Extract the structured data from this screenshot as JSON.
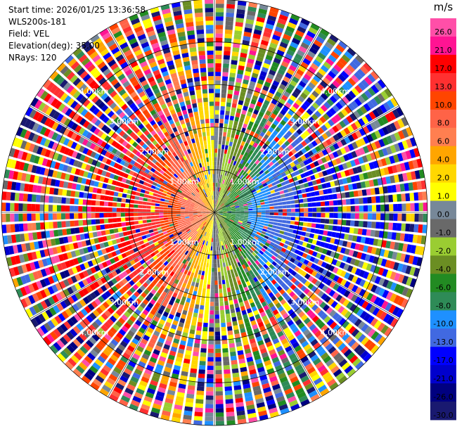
{
  "header": {
    "start_time": "Start time: 2026/01/25 13:36:58",
    "instrument": "WLS200s-181",
    "field": "Field: VEL",
    "elevation": "Elevation(deg): 35.00",
    "nrays": "NRays: 120"
  },
  "chart_data": {
    "type": "heatmap",
    "projection": "polar-ppi",
    "field": "VEL",
    "units": "m/s",
    "n_rays": 120,
    "max_range_km": 5.0,
    "range_rings_km": [
      1.0,
      2.0,
      3.0,
      4.0
    ],
    "range_ring_labels": [
      "1.00km",
      "2.00km",
      "3.00km",
      "4.00km"
    ],
    "colorbar": {
      "unit": "m/s",
      "ticks": [
        "26.0",
        "21.0",
        "17.0",
        "13.0",
        "10.0",
        "8.0",
        "6.0",
        "4.0",
        "2.0",
        "1.0",
        "0.0",
        "-1.0",
        "-2.0",
        "-4.0",
        "-6.0",
        "-8.0",
        "-10.0",
        "-13.0",
        "-17.0",
        "-21.0",
        "-26.0",
        "-30.0"
      ],
      "colors": [
        "#ff4fa8",
        "#ff1493",
        "#ff0000",
        "#ff3030",
        "#ff4500",
        "#ff6347",
        "#ff7f50",
        "#ffa500",
        "#ffd700",
        "#ffff00",
        "#778899",
        "#696969",
        "#9acd32",
        "#6b8e23",
        "#228b22",
        "#2e8b57",
        "#1e90ff",
        "#4169e1",
        "#0000ff",
        "#0000cd",
        "#000080",
        "#191970"
      ]
    }
  }
}
